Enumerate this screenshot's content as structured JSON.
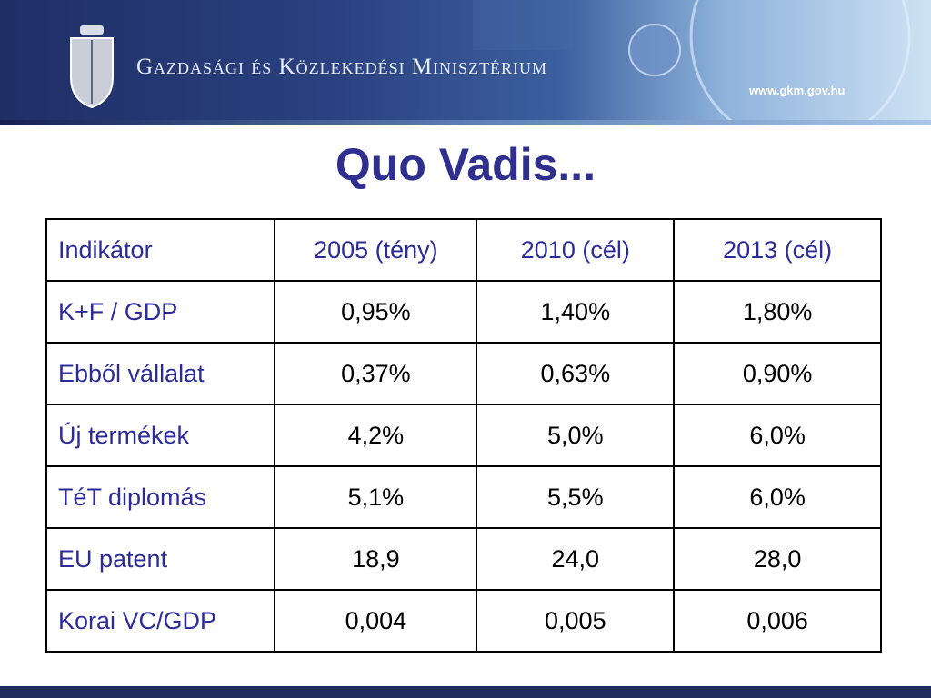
{
  "header": {
    "ministry": "Gazdasági és Közlekedési Minisztérium",
    "website": "www.gkm.gov.hu"
  },
  "title": "Quo Vadis...",
  "table": {
    "columns": [
      "Indikátor",
      "2005 (tény)",
      "2010 (cél)",
      "2013 (cél)"
    ],
    "rows": [
      [
        "K+F / GDP",
        "0,95%",
        "1,40%",
        "1,80%"
      ],
      [
        "Ebből vállalat",
        "0,37%",
        "0,63%",
        "0,90%"
      ],
      [
        "Új termékek",
        "4,2%",
        "5,0%",
        "6,0%"
      ],
      [
        "TéT diplomás",
        "5,1%",
        "5,5%",
        "6,0%"
      ],
      [
        "EU patent",
        "18,9",
        "24,0",
        "28,0"
      ],
      [
        "Korai VC/GDP",
        "0,004",
        "0,005",
        "0,006"
      ]
    ]
  }
}
